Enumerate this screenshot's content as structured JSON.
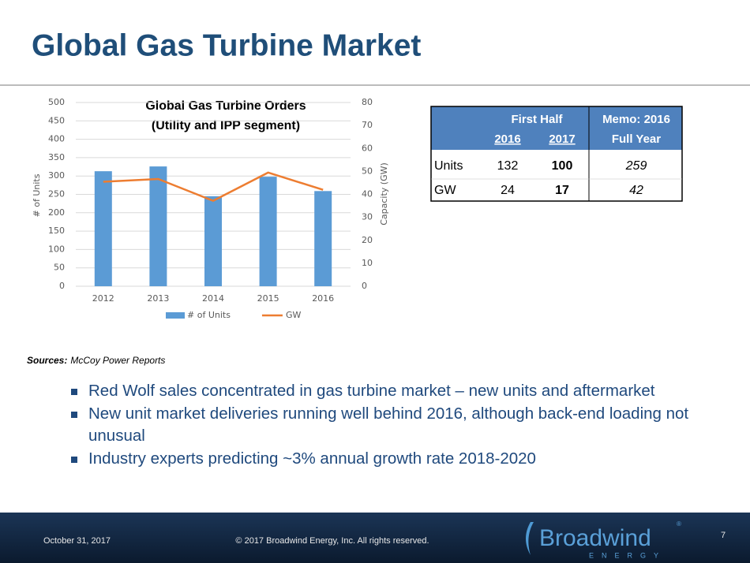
{
  "header": {
    "title": "Global Gas Turbine Market"
  },
  "chart_data": {
    "type": "bar",
    "title": "Global Gas Turbine Orders",
    "subtitle": "(Utility and IPP segment)",
    "categories": [
      "2012",
      "2013",
      "2014",
      "2015",
      "2016"
    ],
    "series": [
      {
        "name": "# of Units",
        "color": "#5b9bd5",
        "type": "bar",
        "values": [
          313,
          326,
          245,
          298,
          259
        ]
      },
      {
        "name": "GW",
        "color": "#ed7d31",
        "type": "line",
        "axis": "y2",
        "values": [
          45.5,
          46.7,
          37.2,
          49.5,
          42
        ]
      }
    ],
    "ylabel": "# of Units",
    "y2label": "Capacity (GW)",
    "ylim": [
      0,
      500
    ],
    "yticks": [
      0,
      50,
      100,
      150,
      200,
      250,
      300,
      350,
      400,
      450,
      500
    ],
    "y2lim": [
      0,
      80
    ],
    "y2ticks": [
      0,
      10,
      20,
      30,
      40,
      50,
      60,
      70,
      80
    ],
    "grid": true,
    "legend": "bottom"
  },
  "table": {
    "group_header": "First Half",
    "year_headers": [
      "2016",
      "2017"
    ],
    "memo_header": [
      "Memo: 2016",
      "Full Year"
    ],
    "rows": [
      [
        "Units",
        132,
        100,
        259
      ],
      [
        "GW",
        24,
        17,
        42
      ]
    ]
  },
  "sources": {
    "label": "Sources:",
    "text": "McCoy Power Reports"
  },
  "bullets": [
    "Red Wolf sales concentrated in gas turbine market – new units and aftermarket",
    "New unit market deliveries running well behind 2016, although back-end loading not unusual",
    "Industry experts predicting ~3% annual growth rate 2018-2020"
  ],
  "footer": {
    "date": "October 31, 2017",
    "copyright": "© 2017 Broadwind Energy, Inc. All rights reserved.",
    "page": "7",
    "logo": "Broadwind",
    "logo_mark": "®",
    "logo_sub": "ENERGY"
  }
}
